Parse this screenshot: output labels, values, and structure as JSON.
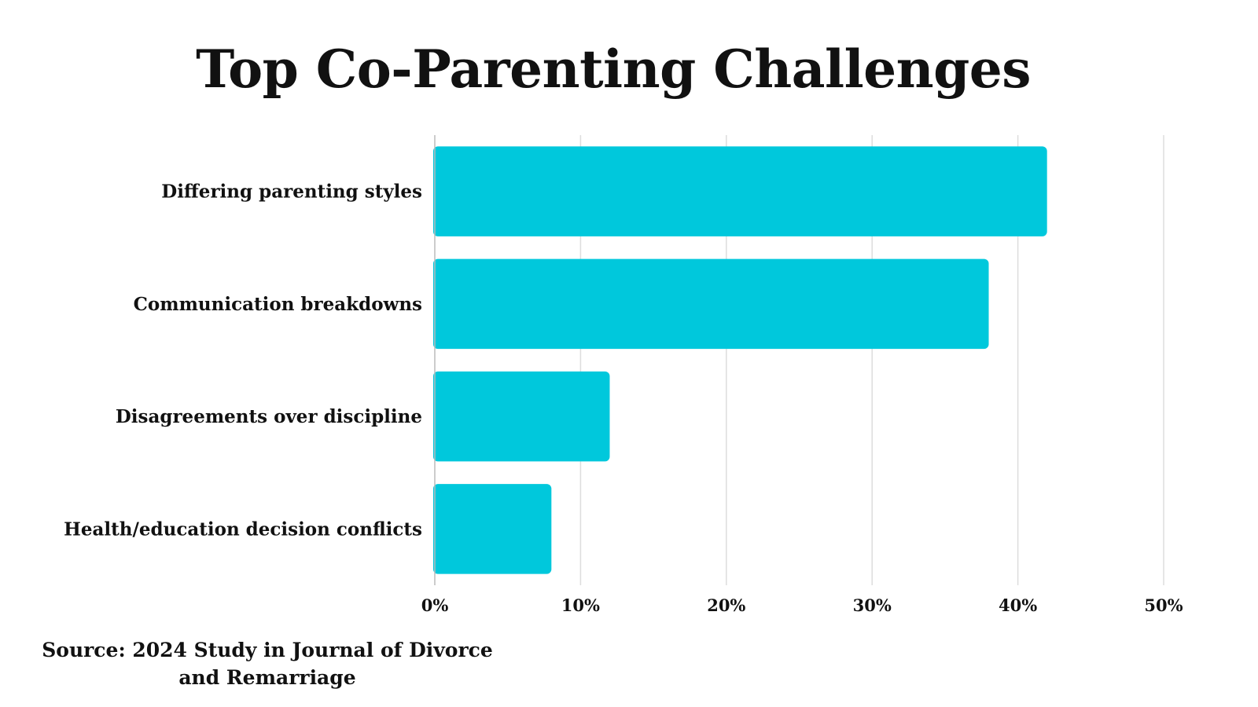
{
  "chart_data": {
    "type": "bar",
    "orientation": "horizontal",
    "title": "Top Co-Parenting Challenges",
    "categories": [
      "Differing parenting styles",
      "Communication breakdowns",
      "Disagreements over discipline",
      "Health/education decision conflicts"
    ],
    "values": [
      42,
      38,
      12,
      8
    ],
    "unit": "%",
    "xlabel": "",
    "ylabel": "",
    "xlim": [
      0,
      50
    ],
    "xticks": [
      0,
      10,
      20,
      30,
      40,
      50
    ],
    "xtick_labels": [
      "0%",
      "10%",
      "20%",
      "30%",
      "40%",
      "50%"
    ],
    "grid": "vertical",
    "legend": "none",
    "bar_color": "#00C8DC",
    "grid_color": "#DDDDDD",
    "axis_color": "#BBBBBB"
  },
  "source": "Source: 2024 Study in Journal of Divorce and Remarriage"
}
